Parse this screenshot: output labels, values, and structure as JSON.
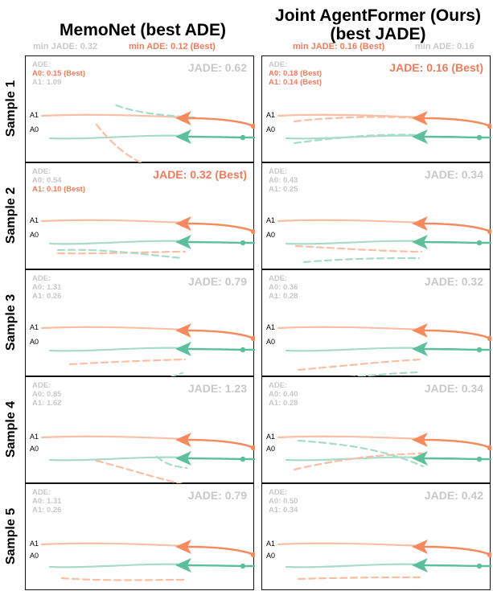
{
  "columns": [
    {
      "title": "MemoNet (best ADE)",
      "sub_left": "min JADE: 0.32",
      "sub_right": "min ADE: 0.12 (Best)"
    },
    {
      "title": "Joint AgentFormer (Ours) (best JADE)",
      "sub_left": "min JADE: 0.16 (Best)",
      "sub_right": "min ADE: 0.16"
    }
  ],
  "agent_labels": {
    "a1": "A1",
    "a0": "A0"
  },
  "ade_heading": "ADE:",
  "colors": {
    "orange": "#f58a5f",
    "orange_light": "#f9bea4",
    "green": "#5cbf9b",
    "green_light": "#a9dbc9",
    "gray_text": "#c8c8c8",
    "red_text": "#f07c5e"
  },
  "samples": [
    {
      "label": "Sample 1",
      "memonet": {
        "jade": "JADE: 0.62",
        "jade_best": false,
        "a0": "A0: 0.15 (Best)",
        "a1": "A1: 1.09",
        "a0_best": true,
        "a1_best": false
      },
      "ours": {
        "jade": "JADE: 0.16 (Best)",
        "jade_best": true,
        "a0": "A0: 0.18 (Best)",
        "a1": "A1: 0.14 (Best)",
        "a0_best": true,
        "a1_best": true
      }
    },
    {
      "label": "Sample 2",
      "memonet": {
        "jade": "JADE: 0.32 (Best)",
        "jade_best": true,
        "a0": "A0: 0.54",
        "a1": "A1: 0.10 (Best)",
        "a0_best": false,
        "a1_best": true
      },
      "ours": {
        "jade": "JADE: 0.34",
        "jade_best": false,
        "a0": "A0: 0.43",
        "a1": "A1: 0.25",
        "a0_best": false,
        "a1_best": false
      }
    },
    {
      "label": "Sample 3",
      "memonet": {
        "jade": "JADE: 0.79",
        "jade_best": false,
        "a0": "A0: 1.31",
        "a1": "A1: 0.26",
        "a0_best": false,
        "a1_best": false
      },
      "ours": {
        "jade": "JADE: 0.32",
        "jade_best": false,
        "a0": "A0: 0.36",
        "a1": "A1: 0.28",
        "a0_best": false,
        "a1_best": false
      }
    },
    {
      "label": "Sample 4",
      "memonet": {
        "jade": "JADE: 1.23",
        "jade_best": false,
        "a0": "A0: 0.85",
        "a1": "A1: 1.62",
        "a0_best": false,
        "a1_best": false
      },
      "ours": {
        "jade": "JADE: 0.34",
        "jade_best": false,
        "a0": "A0: 0.40",
        "a1": "A1: 0.28",
        "a0_best": false,
        "a1_best": false
      }
    },
    {
      "label": "Sample 5",
      "memonet": {
        "jade": "JADE: 0.79",
        "jade_best": false,
        "a0": "A0: 1.31",
        "a1": "A1: 0.26",
        "a0_best": false,
        "a1_best": false
      },
      "ours": {
        "jade": "JADE: 0.42",
        "jade_best": false,
        "a0": "A0: 0.50",
        "a1": "A1: 0.34",
        "a0_best": false,
        "a1_best": false
      }
    }
  ]
}
